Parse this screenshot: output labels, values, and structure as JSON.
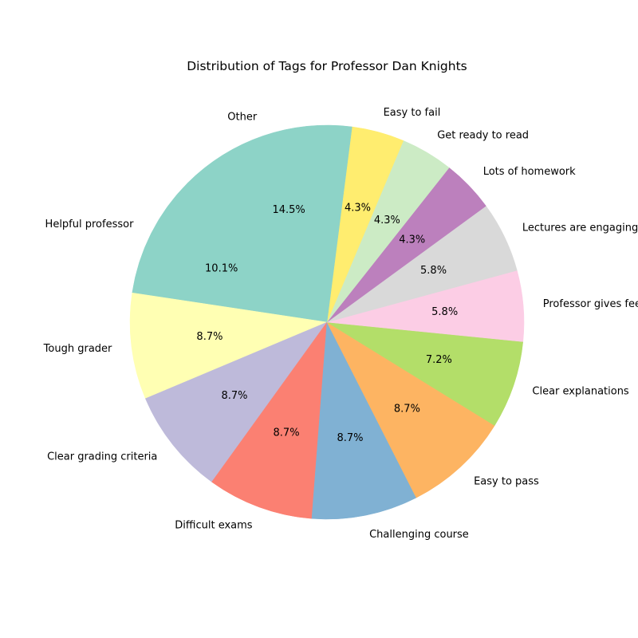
{
  "chart_data": {
    "type": "pie",
    "title": "Distribution of Tags for Professor Dan Knights",
    "start_angle": 135,
    "direction": "counterclockwise",
    "slices": [
      {
        "label": "Helpful professor",
        "value": 10.1,
        "pct_label": "10.1%",
        "color": "#8dd3c7"
      },
      {
        "label": "Tough grader",
        "value": 8.7,
        "pct_label": "8.7%",
        "color": "#ffffb3"
      },
      {
        "label": "Clear grading criteria",
        "value": 8.7,
        "pct_label": "8.7%",
        "color": "#bebada"
      },
      {
        "label": "Difficult exams",
        "value": 8.7,
        "pct_label": "8.7%",
        "color": "#fb8072"
      },
      {
        "label": "Challenging course",
        "value": 8.7,
        "pct_label": "8.7%",
        "color": "#80b1d3"
      },
      {
        "label": "Easy to pass",
        "value": 8.7,
        "pct_label": "8.7%",
        "color": "#fdb462"
      },
      {
        "label": "Clear explanations",
        "value": 7.2,
        "pct_label": "7.2%",
        "color": "#b3de69"
      },
      {
        "label": "Professor gives feedback",
        "value": 5.8,
        "pct_label": "5.8%",
        "color": "#fccde5"
      },
      {
        "label": "Lectures are engaging",
        "value": 5.8,
        "pct_label": "5.8%",
        "color": "#d9d9d9"
      },
      {
        "label": "Lots of homework",
        "value": 4.3,
        "pct_label": "4.3%",
        "color": "#bc80bd"
      },
      {
        "label": "Get ready to read",
        "value": 4.3,
        "pct_label": "4.3%",
        "color": "#ccebc5"
      },
      {
        "label": "Easy to fail",
        "value": 4.3,
        "pct_label": "4.3%",
        "color": "#ffed6f"
      },
      {
        "label": "Other",
        "value": 14.5,
        "pct_label": "14.5%",
        "color": "#8dd3c7"
      }
    ]
  }
}
